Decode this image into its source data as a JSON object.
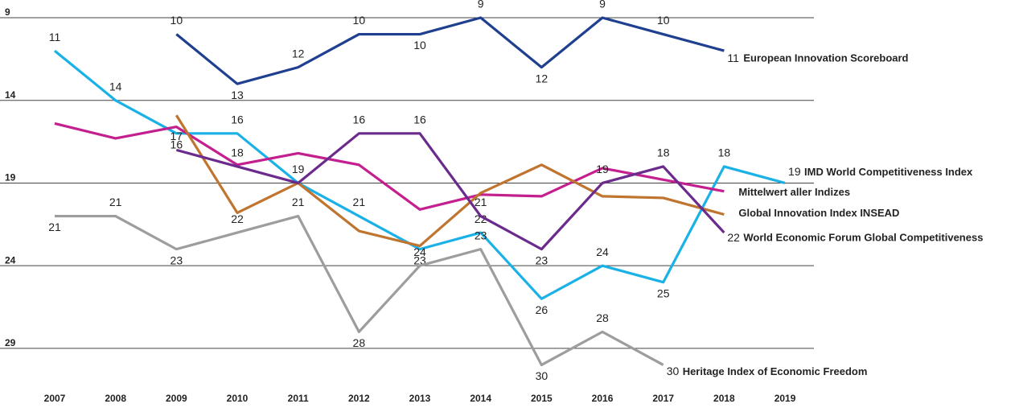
{
  "chart_data": {
    "type": "line",
    "inverted_y": true,
    "categories": [
      "2007",
      "2008",
      "2009",
      "2010",
      "2011",
      "2012",
      "2013",
      "2014",
      "2015",
      "2016",
      "2017",
      "2018",
      "2019"
    ],
    "ylim": [
      9,
      31
    ],
    "yticks": [
      9,
      14,
      19,
      24,
      29
    ],
    "grid": true,
    "series": [
      {
        "name": "European Innovation Scoreboard",
        "color": "#1f3f8f",
        "values": [
          null,
          null,
          10,
          13,
          12,
          10,
          10,
          9,
          12,
          9,
          10,
          11,
          null
        ],
        "value_labels": [
          null,
          null,
          "10",
          "13",
          "12",
          "10",
          "10",
          "9",
          "12",
          "9",
          "10",
          "11",
          null
        ]
      },
      {
        "name": "IMD World Competitiveness Index",
        "color": "#1ab2e6",
        "values": [
          11,
          14,
          16,
          16,
          19,
          21,
          23,
          22,
          26,
          24,
          25,
          18,
          19
        ],
        "value_labels": [
          "11",
          "14",
          "16",
          "16",
          "19",
          "21",
          "23",
          "22",
          "26",
          "24",
          "25",
          "18",
          "19"
        ]
      },
      {
        "name": "Mittelwert aller Indizes",
        "color": "#c41f8e",
        "values": [
          15.4,
          16.3,
          15.6,
          17.9,
          17.2,
          17.9,
          20.6,
          19.7,
          19.8,
          18.1,
          18.8,
          19.5,
          null
        ]
      },
      {
        "name": "Global Innovation Index INSEAD",
        "color": "#bf7530",
        "values": [
          null,
          null,
          14.9,
          20.8,
          19,
          21.9,
          22.8,
          19.6,
          17.9,
          19.8,
          19.9,
          20.9,
          null
        ]
      },
      {
        "name": "World Economic Forum Global Competitiveness",
        "color": "#6a2b8c",
        "values": [
          null,
          null,
          17,
          18,
          19,
          16,
          16,
          21,
          23,
          19,
          18,
          22,
          null
        ],
        "value_labels": [
          null,
          null,
          "17",
          "18",
          null,
          "16",
          "16",
          "21",
          "23",
          "19",
          "18",
          "22",
          null
        ]
      },
      {
        "name": "Heritage Index of Economic Freedom",
        "color": "#9d9d9d",
        "values": [
          21,
          21,
          23,
          22,
          21,
          28,
          24,
          23,
          30,
          28,
          30,
          null,
          null
        ],
        "value_labels": [
          "21",
          "21",
          "23",
          "22",
          "21",
          "28",
          "24",
          "23",
          "30",
          "28",
          "30",
          null,
          null
        ]
      }
    ]
  }
}
